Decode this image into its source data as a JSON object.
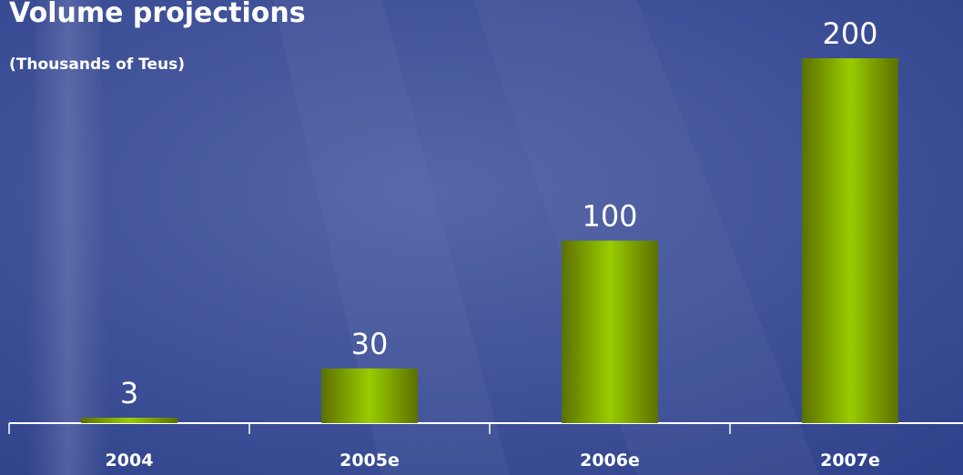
{
  "chart_data": {
    "type": "bar",
    "title": "Volume projections",
    "subtitle": "(Thousands of Teus)",
    "categories": [
      "2004",
      "2005e",
      "2006e",
      "2007e"
    ],
    "values": [
      3,
      30,
      100,
      200
    ],
    "color": "#99cc00",
    "ylim": [
      0,
      200
    ]
  }
}
